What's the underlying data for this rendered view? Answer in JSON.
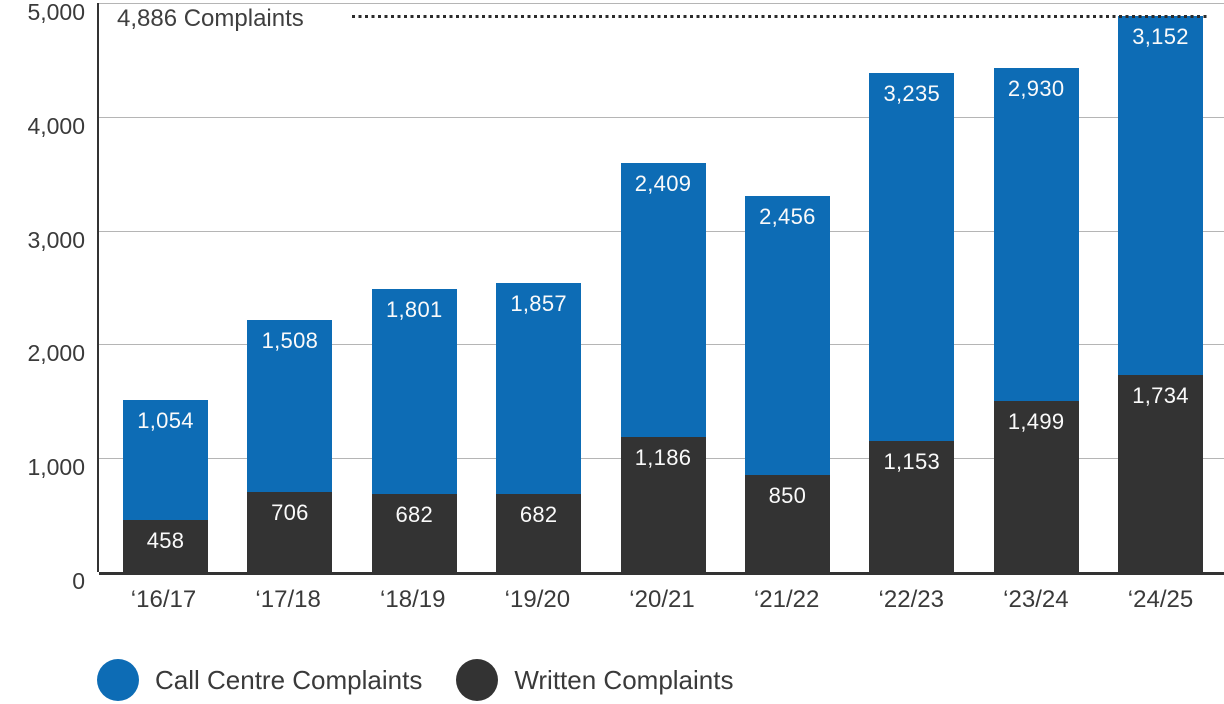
{
  "chart_data": {
    "type": "bar",
    "stacked": true,
    "title": "",
    "xlabel": "",
    "ylabel": "",
    "categories": [
      "‘16/17",
      "‘17/18",
      "‘18/19",
      "‘19/20",
      "‘20/21",
      "‘21/22",
      "‘22/23",
      "‘23/24",
      "‘24/25"
    ],
    "series": [
      {
        "name": "Call Centre Complaints",
        "color": "#0d6cb5",
        "values": [
          1054,
          1508,
          1801,
          1857,
          2409,
          2456,
          3235,
          2930,
          3152
        ]
      },
      {
        "name": "Written Complaints",
        "color": "#333333",
        "values": [
          458,
          706,
          682,
          682,
          1186,
          850,
          1153,
          1499,
          1734
        ]
      }
    ],
    "stack_order_bottom_to_top": [
      "Written Complaints",
      "Call Centre Complaints"
    ],
    "totals": [
      1512,
      2214,
      2483,
      2539,
      3595,
      3306,
      4388,
      4429,
      4886
    ],
    "annotation": {
      "label": "4,886 Complaints",
      "value": 4886
    },
    "ylim": [
      0,
      5000
    ],
    "ytick_step": 1000,
    "yticks": [
      "0",
      "1,000",
      "2,000",
      "3,000",
      "4,000",
      "5,000"
    ],
    "grid": true,
    "legend_position": "bottom"
  },
  "colors": {
    "bar_blue": "#0d6cb5",
    "bar_dark": "#333333",
    "gridline": "#b5b5b5",
    "axis": "#333333",
    "text": "#3a3a3a",
    "value_label": "#fafafa",
    "dotted_line": "#2b2b2b",
    "background": "#ffffff"
  }
}
